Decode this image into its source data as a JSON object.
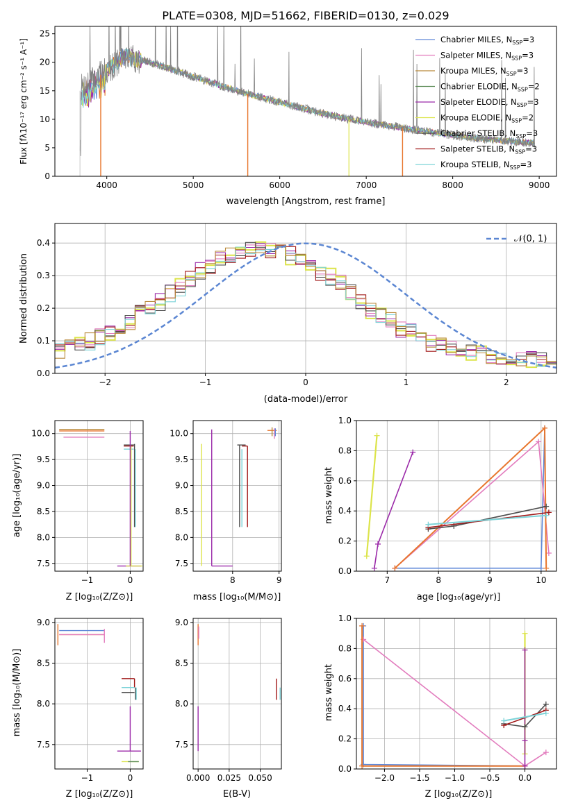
{
  "title": "PLATE=0308, MJD=51662, FIBERID=0130, z=0.029",
  "colors": {
    "Chabrier MILES": "#5f88d8",
    "Salpeter MILES": "#e27bbd",
    "Kroupa MILES": "#b9893a",
    "Chabrier ELODIE": "#5a8a55",
    "Salpeter ELODIE": "#9b2aa9",
    "Kroupa ELODIE": "#dce44a",
    "Chabrier STELIB": "#4d4d4d",
    "Salpeter STELIB": "#a11818",
    "Kroupa STELIB": "#7cd3d8",
    "orange": "#e8762d",
    "data": "#808080",
    "gaussian": "#5b86d2"
  },
  "spectrum": {
    "xlabel": "wavelength [Angstrom, rest frame]",
    "ylabel": "Flux [fλ10⁻¹⁷ erg cm⁻² s⁻¹ A⁻¹]",
    "legend": [
      "Chabrier MILES, N_SSP=3",
      "Salpeter MILES, N_SSP=3",
      "Kroupa MILES, N_SSP=3",
      "Chabrier ELODIE, N_SSP=2",
      "Salpeter ELODIE, N_SSP=3",
      "Kroupa ELODIE, N_SSP=2",
      "Chabrier STELIB, N_SSP=3",
      "Salpeter STELIB, N_SSP=3",
      "Kroupa STELIB, N_SSP=3"
    ]
  },
  "residual": {
    "xlabel": "(data-model)/error",
    "ylabel": "Normed distribution",
    "legend_label": "𝒩(0, 1)"
  },
  "panels": {
    "age_label": "age  [log₁₀(age/yr)]",
    "z_label": "Z [log₁₀(Z/Z⊙)]",
    "mass_label": "mass [log₁₀(M/M⊙)]",
    "mass_weight_label": "mass weight",
    "ebv_label": "E(B-V)"
  },
  "chart_data": [
    {
      "type": "line",
      "title": "PLATE=0308, MJD=51662, FIBERID=0130, z=0.029",
      "xlabel": "wavelength [Angstrom, rest frame]",
      "ylabel": "Flux [fλ10⁻¹⁷ erg cm⁻² s⁻¹ A⁻¹]",
      "xlim": [
        3400,
        9200
      ],
      "ylim": [
        0,
        26.3
      ],
      "xticks": [
        4000,
        5000,
        6000,
        7000,
        8000,
        9000
      ],
      "yticks": [
        0,
        5,
        10,
        15,
        20,
        25
      ],
      "grid": false,
      "legend_position": "top-right",
      "continuum": {
        "x": [
          3700,
          3900,
          4000,
          4200,
          4500,
          5000,
          5500,
          6000,
          6500,
          7000,
          7500,
          8000,
          8500,
          8950
        ],
        "y": [
          15.5,
          17.5,
          18.5,
          21.0,
          20.0,
          17.5,
          15.0,
          13.0,
          11.0,
          9.5,
          8.3,
          7.2,
          6.3,
          5.8
        ]
      }
    },
    {
      "type": "line",
      "xlabel": "(data-model)/error",
      "ylabel": "Normed distribution",
      "xlim": [
        -2.5,
        2.5
      ],
      "ylim": [
        0,
        0.46
      ],
      "xticks": [
        -2,
        -1,
        0,
        1,
        2
      ],
      "yticks": [
        0.0,
        0.1,
        0.2,
        0.3,
        0.4
      ],
      "grid": true,
      "legend_position": "top-right",
      "series": [
        {
          "x": [
            -2.5,
            0.0,
            2.5
          ],
          "y": [
            0.018,
            0.399,
            0.018
          ]
        }
      ]
    },
    {
      "type": "scatter",
      "xlabel": "Z [log₁₀(Z/Z⊙)]",
      "ylabel": "age  [log₁₀(age/yr)]",
      "xlim": [
        -1.75,
        0.3
      ],
      "ylim": [
        7.35,
        10.25
      ],
      "xticks": [
        -1,
        0
      ],
      "yticks": [
        7.5,
        8.0,
        8.5,
        9.0,
        9.5,
        10.0,
        10.5
      ],
      "grid": true
    },
    {
      "type": "scatter",
      "xlabel": "mass [log₁₀(M/M⊙)]",
      "xlim": [
        7.15,
        9.05
      ],
      "ylim": [
        7.35,
        10.25
      ],
      "xticks": [
        8,
        9
      ],
      "yticks": [
        7.5,
        8.0,
        8.5,
        9.0,
        9.5,
        10.0
      ],
      "grid": true
    },
    {
      "type": "line",
      "xlabel": "age  [log₁₀(age/yr)]",
      "ylabel": "mass weight",
      "xlim": [
        6.4,
        10.3
      ],
      "ylim": [
        0,
        1.0
      ],
      "xticks": [
        7,
        8,
        9,
        10
      ],
      "yticks": [
        0.0,
        0.2,
        0.4,
        0.6,
        0.8,
        1.0
      ],
      "grid": true
    },
    {
      "type": "scatter",
      "xlabel": "Z [log₁₀(Z/Z⊙)]",
      "ylabel": "mass [log₁₀(M/M⊙)]",
      "xlim": [
        -1.75,
        0.3
      ],
      "ylim": [
        7.2,
        9.05
      ],
      "xticks": [
        -1,
        0
      ],
      "yticks": [
        7.5,
        8.0,
        8.5,
        9.0
      ],
      "grid": true
    },
    {
      "type": "scatter",
      "xlabel": "E(B-V)",
      "xlim": [
        -0.004,
        0.067
      ],
      "ylim": [
        7.2,
        9.05
      ],
      "xticks": [
        0.0,
        0.025,
        0.05
      ],
      "xticklabels": [
        "0.000",
        "0.025",
        "0.050"
      ],
      "yticks": [
        7.5,
        8.0,
        8.5,
        9.0
      ],
      "grid": true
    },
    {
      "type": "line",
      "xlabel": "Z [log₁₀(Z/Z⊙)]",
      "ylabel": "mass weight",
      "xlim": [
        -2.4,
        0.45
      ],
      "ylim": [
        0,
        1.0
      ],
      "xticks": [
        -2.0,
        -1.5,
        -1.0,
        -0.5,
        0.0
      ],
      "xticklabels": [
        "−2.0",
        "−1.5",
        "−1.0",
        "−0.5",
        "0.0"
      ],
      "yticks": [
        0.0,
        0.2,
        0.4,
        0.6,
        0.8,
        1.0
      ],
      "grid": true
    }
  ]
}
